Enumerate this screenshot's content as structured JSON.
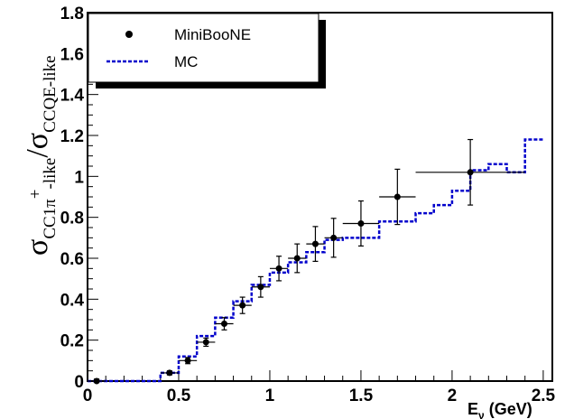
{
  "chart_data": {
    "type": "scatter",
    "title": "",
    "xlabel_main": "E",
    "xlabel_sub": "ν",
    "xlabel_unit": " (GeV)",
    "ylabel_main_1": "σ",
    "ylabel_sub_1": "CC1π",
    "ylabel_sup": "+",
    "ylabel_sub_1b": "-like",
    "ylabel_slash": "/",
    "ylabel_main_2": "σ",
    "ylabel_sub_2": "CCQE-like",
    "xlim": [
      0,
      2.55
    ],
    "ylim": [
      0,
      1.8
    ],
    "xticks": [
      "0",
      "0.5",
      "1",
      "1.5",
      "2",
      "2.5"
    ],
    "xtick_values": [
      0,
      0.5,
      1,
      1.5,
      2,
      2.5
    ],
    "yticks": [
      "0",
      "0.2",
      "0.4",
      "0.6",
      "0.8",
      "1",
      "1.2",
      "1.4",
      "1.6",
      "1.8"
    ],
    "ytick_values": [
      0,
      0.2,
      0.4,
      0.6,
      0.8,
      1.0,
      1.2,
      1.4,
      1.6,
      1.8
    ],
    "legend_position": "top-left",
    "series": [
      {
        "name": "MiniBooNE",
        "kind": "points-with-errors",
        "color": "#000000",
        "x": [
          0.05,
          0.45,
          0.55,
          0.65,
          0.75,
          0.85,
          0.95,
          1.05,
          1.15,
          1.25,
          1.35,
          1.5,
          1.7,
          2.1
        ],
        "xerr": [
          0.05,
          0.05,
          0.05,
          0.05,
          0.05,
          0.05,
          0.05,
          0.05,
          0.05,
          0.05,
          0.05,
          0.1,
          0.1,
          0.3
        ],
        "y": [
          0.0,
          0.04,
          0.1,
          0.19,
          0.28,
          0.37,
          0.46,
          0.55,
          0.6,
          0.67,
          0.7,
          0.77,
          0.9,
          1.02
        ],
        "yerr": [
          0.01,
          0.01,
          0.015,
          0.02,
          0.03,
          0.04,
          0.05,
          0.06,
          0.07,
          0.085,
          0.095,
          0.11,
          0.135,
          0.16
        ]
      },
      {
        "name": "MC",
        "kind": "step",
        "color": "#0000cc",
        "edges": [
          0.0,
          0.4,
          0.5,
          0.6,
          0.7,
          0.8,
          0.9,
          1.0,
          1.1,
          1.2,
          1.3,
          1.4,
          1.6,
          1.8,
          1.9,
          2.0,
          2.1,
          2.2,
          2.3,
          2.4,
          2.5
        ],
        "values": [
          0.0,
          0.04,
          0.12,
          0.22,
          0.31,
          0.39,
          0.47,
          0.53,
          0.58,
          0.63,
          0.69,
          0.7,
          0.78,
          0.82,
          0.86,
          0.93,
          1.03,
          1.06,
          1.02,
          1.18
        ]
      }
    ]
  }
}
